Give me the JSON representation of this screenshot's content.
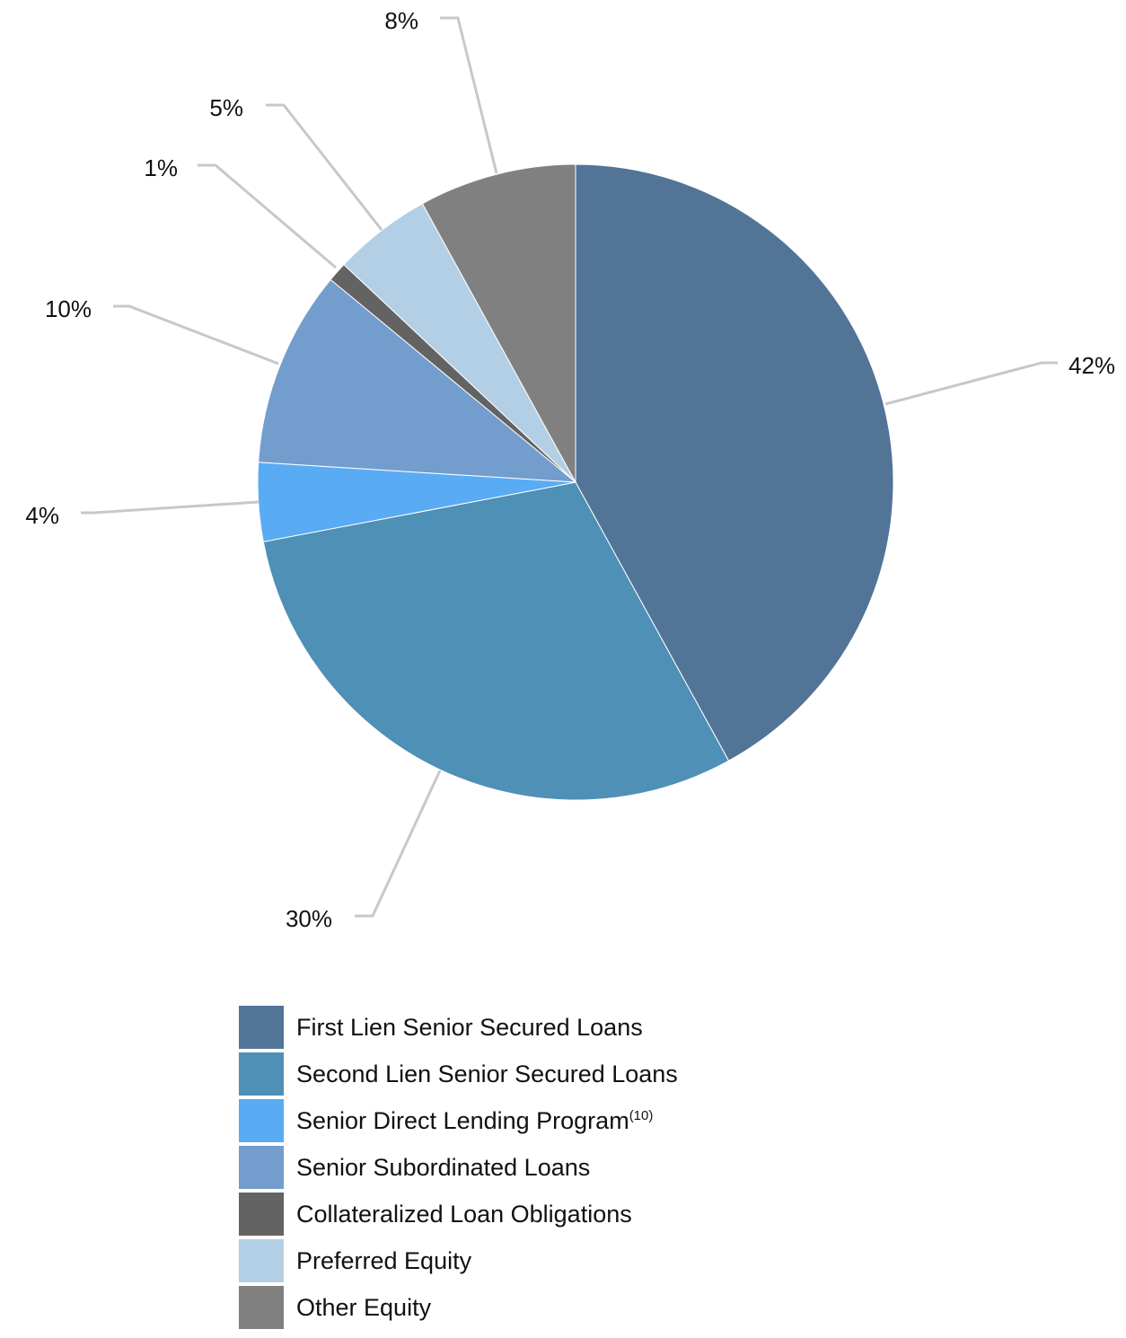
{
  "chart_data": {
    "type": "pie",
    "title": "",
    "slices": [
      {
        "label": "First Lien Senior Secured Loans",
        "value": 42,
        "display": "42%",
        "color": "#527497"
      },
      {
        "label": "Second Lien Senior Secured Loans",
        "value": 30,
        "display": "30%",
        "color": "#4e90b6"
      },
      {
        "label": "Senior Direct Lending Program",
        "note": "(10)",
        "value": 4,
        "display": "4%",
        "color": "#59abf4"
      },
      {
        "label": "Senior Subordinated Loans",
        "value": 10,
        "display": "10%",
        "color": "#739dcc"
      },
      {
        "label": "Collateralized Loan Obligations",
        "value": 1,
        "display": "1%",
        "color": "#636363"
      },
      {
        "label": "Preferred Equity",
        "value": 5,
        "display": "5%",
        "color": "#b2cfe5"
      },
      {
        "label": "Other Equity",
        "value": 8,
        "display": "8%",
        "color": "#808080"
      }
    ],
    "start_angle": "12 o'clock",
    "direction": "clockwise",
    "legend_position": "bottom"
  }
}
